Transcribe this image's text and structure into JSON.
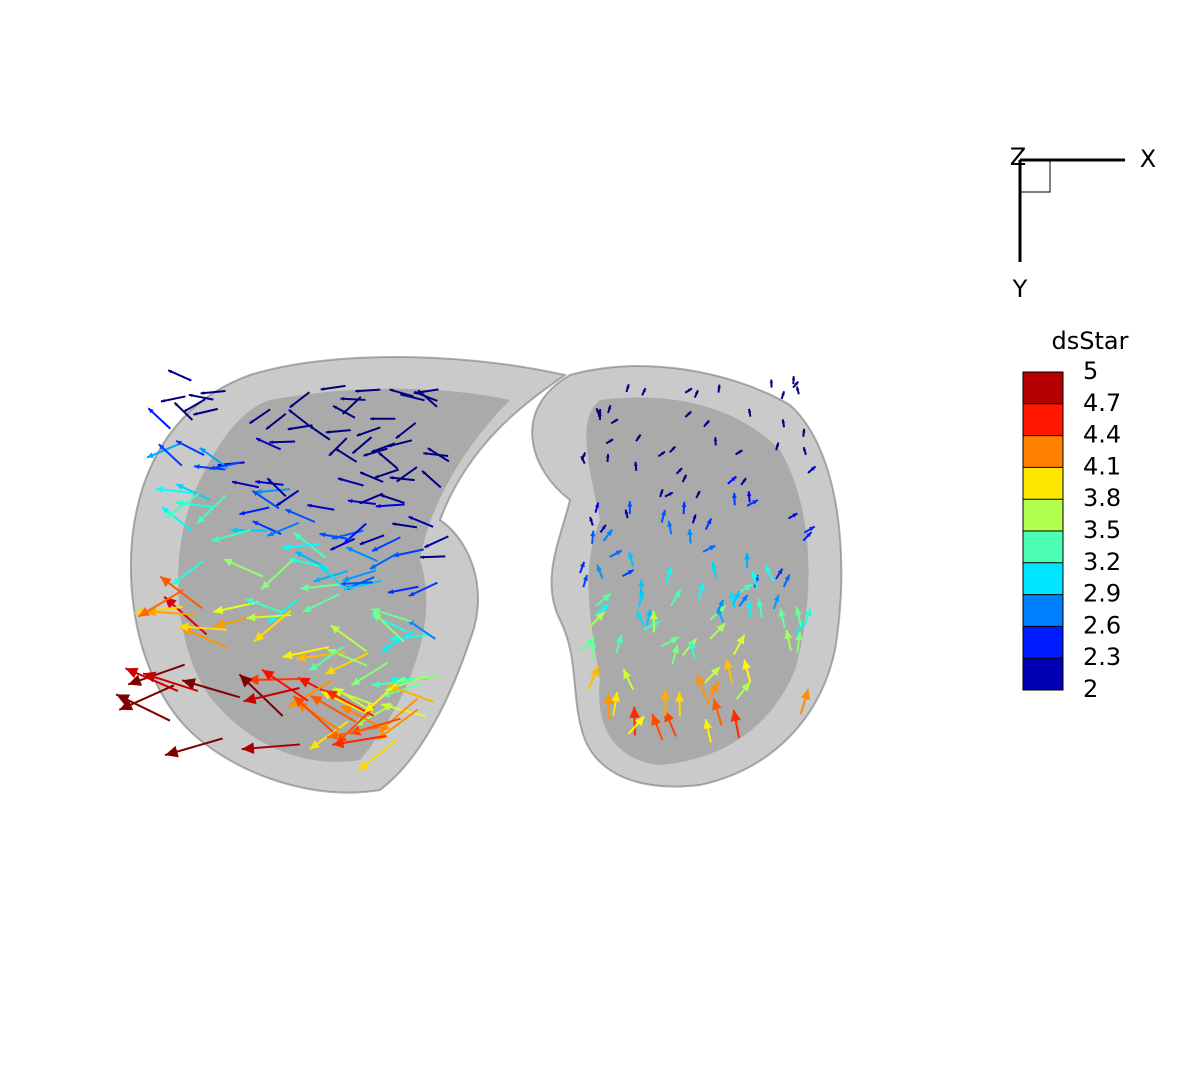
{
  "axes": {
    "x": "X",
    "y": "Y",
    "z": "Z"
  },
  "legend": {
    "title": "dsStar",
    "levels": [
      5,
      4.7,
      4.4,
      4.1,
      3.8,
      3.5,
      3.2,
      2.9,
      2.6,
      2.3,
      2
    ]
  }
}
